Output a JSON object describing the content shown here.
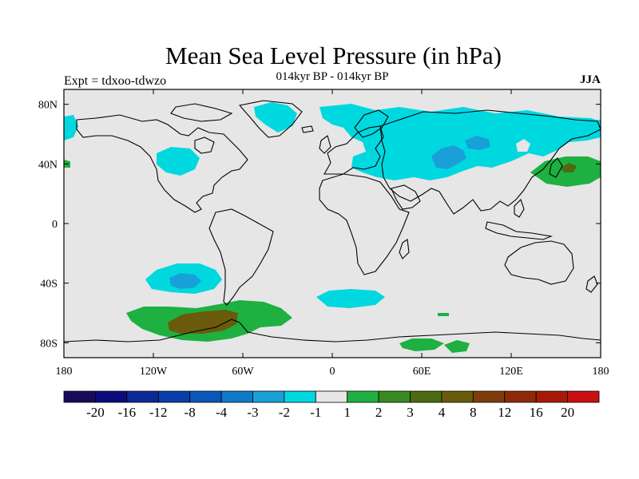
{
  "title": "Mean Sea Level Pressure (in hPa)",
  "subtitle": "014kyr BP - 014kyr BP",
  "experiment_label": "Expt = tdxoo-tdwzo",
  "season": "JJA",
  "x_ticks": [
    "180",
    "120W",
    "60W",
    "0",
    "60E",
    "120E",
    "180"
  ],
  "y_ticks": [
    "80N",
    "40N",
    "0",
    "40S",
    "80S"
  ],
  "colorbar": {
    "colors": [
      "#1a0a5c",
      "#0c0c7c",
      "#0c2a96",
      "#0a3ea8",
      "#0a58b8",
      "#1278c8",
      "#1aa0d8",
      "#00d8e0",
      "#e6e6e6",
      "#1eb040",
      "#3a8a22",
      "#4e6a10",
      "#6a5a0c",
      "#7e3e0a",
      "#8e2a08",
      "#a81a08",
      "#c81010"
    ],
    "labels": [
      "-20",
      "-16",
      "-12",
      "-8",
      "-4",
      "-3",
      "-2",
      "-1",
      "1",
      "2",
      "3",
      "4",
      "8",
      "12",
      "16",
      "20"
    ]
  },
  "chart_data": {
    "type": "heatmap",
    "title": "Mean Sea Level Pressure (in hPa)",
    "subtitle": "014kyr BP - 014kyr BP",
    "projection": "cylindrical equidistant",
    "xlim": [
      -180,
      180
    ],
    "ylim": [
      -90,
      90
    ],
    "x_tick_values": [
      -180,
      -120,
      -60,
      0,
      60,
      120,
      180
    ],
    "y_tick_values": [
      80,
      40,
      0,
      -40,
      -80
    ],
    "background_value": "between -1 and 1",
    "anomalies": [
      {
        "region": "Northern Eurasia",
        "value_range": "-2 to -1",
        "min_range": "-3 to -2"
      },
      {
        "region": "Greenland / North Atlantic",
        "value_range": "-2 to -1"
      },
      {
        "region": "North Pacific / Western North America",
        "value_range": "-2 to -1"
      },
      {
        "region": "Northwest Pacific",
        "value_range": "1 to 2",
        "max_range": "3 to 4"
      },
      {
        "region": "South Pacific (~40S, 110W)",
        "value_range": "-2 to -1",
        "min_range": "-3 to -2"
      },
      {
        "region": "South Atlantic (~50S, 5E)",
        "value_range": "-2 to -1"
      },
      {
        "region": "Southern Ocean / Drake Passage",
        "value_range": "1 to 2",
        "max_range": "3 to 4"
      },
      {
        "region": "Antarctica (~70E)",
        "value_range": "1 to 2"
      }
    ]
  }
}
